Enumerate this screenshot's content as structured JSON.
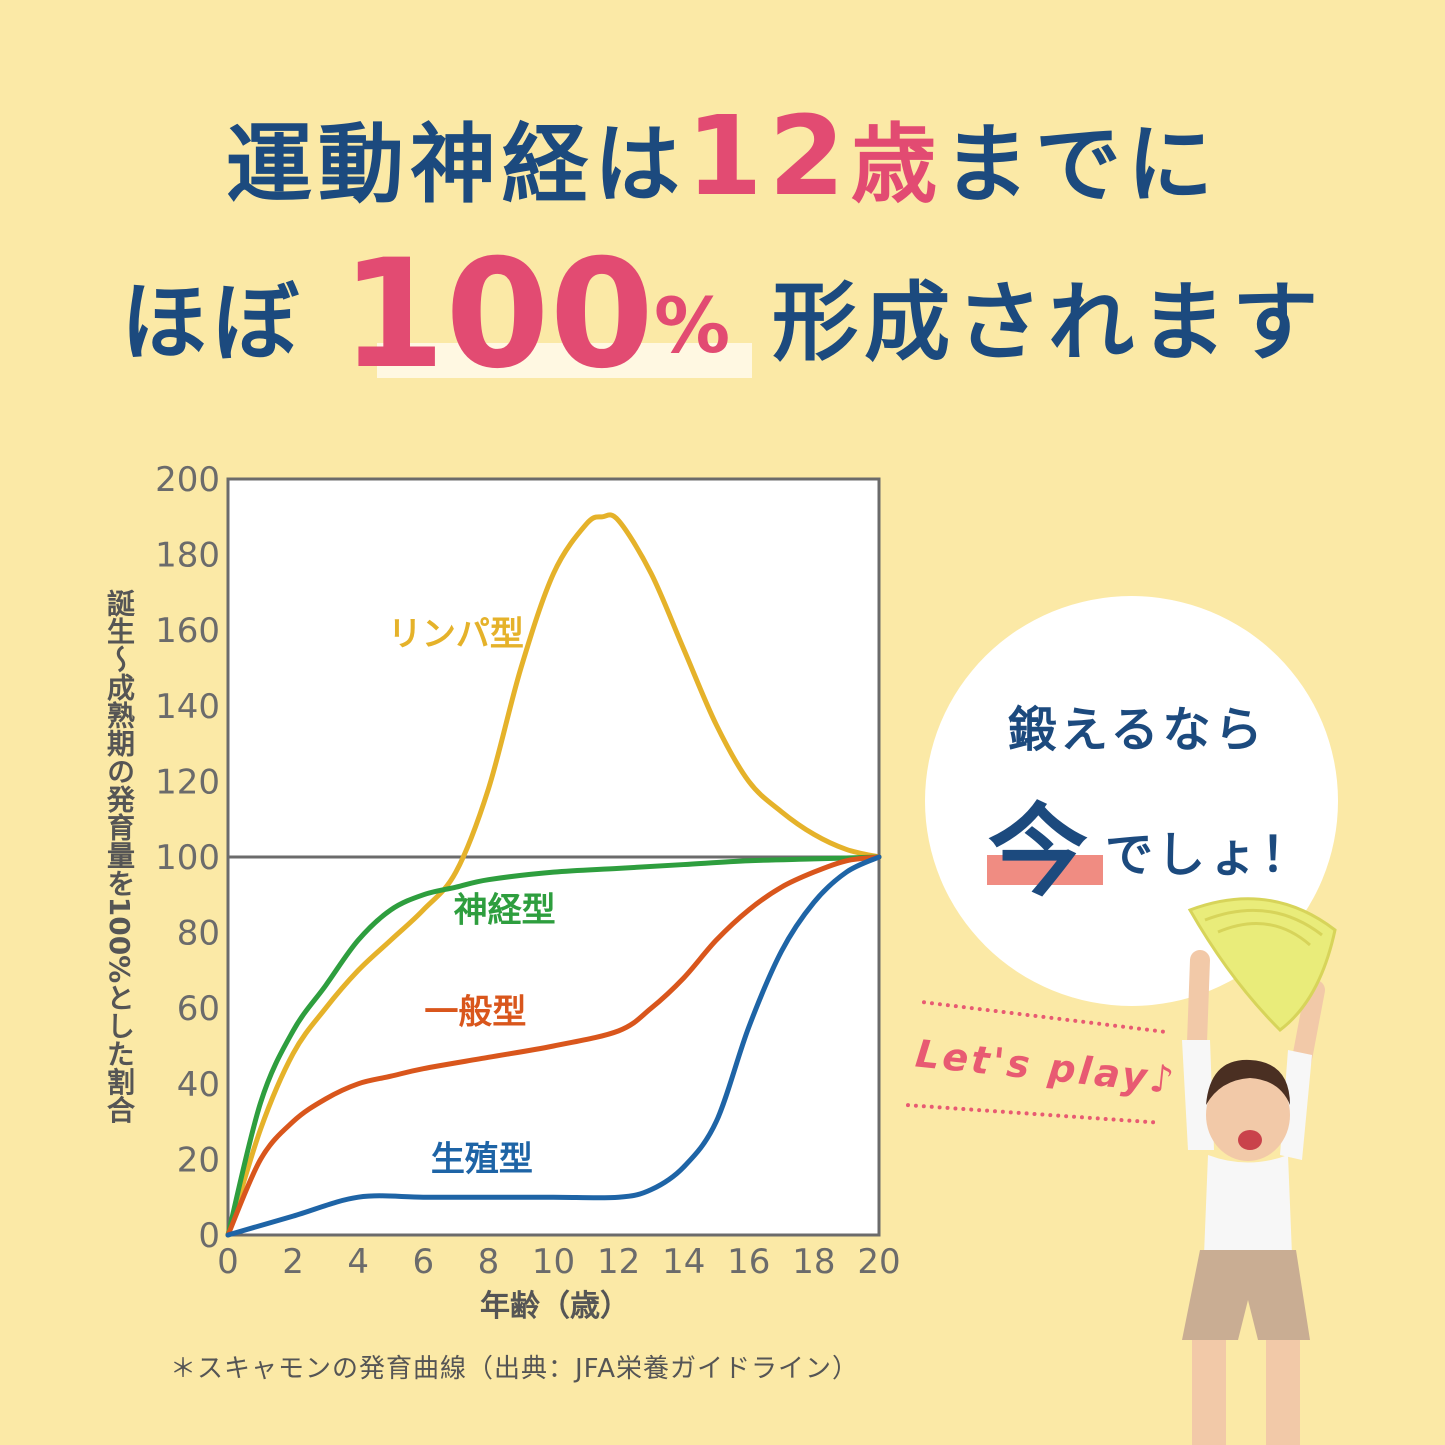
{
  "headline": {
    "line1_a": "運動神経は",
    "line1_num": "12",
    "line1_b": "歳",
    "line1_c": "までに",
    "line2_a": "ほぼ",
    "line2_num": "100",
    "line2_pct": "%",
    "line2_b": "形成されます"
  },
  "bubble": {
    "line1": "鍛えるなら",
    "now": "今",
    "rest": "でしょ！"
  },
  "sticker": "Let's play♪",
  "footnote": "＊スキャモンの発育曲線（出典：JFA栄養ガイドライン）",
  "colors": {
    "navy": "#1c4a7e",
    "pink": "#e24b72",
    "lymph": "#e5b22a",
    "neural": "#2e9e3e",
    "general": "#d9561c",
    "reproductive": "#1e64a6"
  },
  "chart_data": {
    "type": "line",
    "xlabel": "年齢（歳）",
    "ylabel": "誕生～成熟期の発育量を100%とした割合",
    "xlim": [
      0,
      20
    ],
    "ylim": [
      0,
      200
    ],
    "xticks": [
      "0",
      "2",
      "4",
      "6",
      "8",
      "10",
      "12",
      "14",
      "16",
      "18",
      "20"
    ],
    "yticks": [
      "0",
      "20",
      "40",
      "60",
      "80",
      "100",
      "120",
      "140",
      "160",
      "180",
      "200"
    ],
    "reference_line": 100,
    "grid": false,
    "series": [
      {
        "name": "リンパ型",
        "color": "#e5b22a",
        "x": [
          0,
          1,
          2,
          3,
          4,
          5,
          6,
          7,
          8,
          9,
          10,
          11,
          11.5,
          12,
          13,
          14,
          15,
          16,
          17,
          18,
          19,
          20
        ],
        "y": [
          0,
          28,
          48,
          60,
          70,
          78,
          86,
          96,
          118,
          150,
          175,
          188,
          190,
          189,
          175,
          155,
          135,
          120,
          112,
          106,
          102,
          100
        ]
      },
      {
        "name": "神経型",
        "color": "#2e9e3e",
        "x": [
          0,
          1,
          2,
          3,
          4,
          5,
          6,
          7,
          8,
          10,
          12,
          14,
          16,
          18,
          20
        ],
        "y": [
          0,
          35,
          54,
          66,
          78,
          86,
          90,
          92,
          94,
          96,
          97,
          98,
          99,
          99.5,
          100
        ]
      },
      {
        "name": "一般型",
        "color": "#d9561c",
        "x": [
          0,
          1,
          2,
          3,
          4,
          5,
          6,
          8,
          10,
          12,
          13,
          14,
          15,
          16,
          17,
          18,
          19,
          20
        ],
        "y": [
          0,
          20,
          30,
          36,
          40,
          42,
          44,
          47,
          50,
          54,
          60,
          68,
          78,
          86,
          92,
          96,
          99,
          100
        ]
      },
      {
        "name": "生殖型",
        "color": "#1e64a6",
        "x": [
          0,
          2,
          4,
          6,
          8,
          10,
          12,
          13,
          14,
          15,
          16,
          17,
          18,
          19,
          20
        ],
        "y": [
          0,
          5,
          10,
          10,
          10,
          10,
          10,
          12,
          18,
          30,
          55,
          75,
          88,
          96,
          100
        ]
      }
    ],
    "labels": [
      {
        "text": "リンパ型",
        "x": 7.0,
        "y": 156
      },
      {
        "text": "神経型",
        "x": 8.5,
        "y": 83
      },
      {
        "text": "一般型",
        "x": 7.6,
        "y": 56
      },
      {
        "text": "生殖型",
        "x": 7.8,
        "y": 17
      }
    ]
  }
}
